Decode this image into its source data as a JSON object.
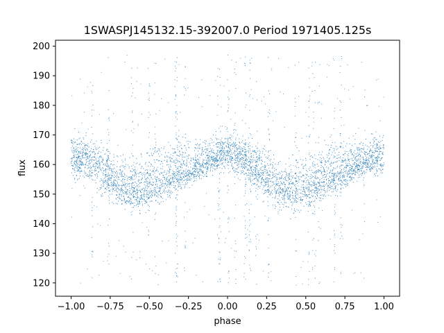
{
  "chart_data": {
    "type": "scatter",
    "title": "1SWASPJ145132.15-392007.0 Period 1971405.125s",
    "xlabel": "phase",
    "ylabel": "flux",
    "xlim": [
      -1.1,
      1.1
    ],
    "ylim": [
      115.5,
      202
    ],
    "xticks": [
      -1.0,
      -0.75,
      -0.5,
      -0.25,
      0.0,
      0.25,
      0.5,
      0.75,
      1.0
    ],
    "xtick_labels": [
      "−1.00",
      "−0.75",
      "−0.50",
      "−0.25",
      "0.00",
      "0.25",
      "0.50",
      "0.75",
      "1.00"
    ],
    "yticks": [
      120,
      130,
      140,
      150,
      160,
      170,
      180,
      190,
      200
    ],
    "ytick_labels": [
      "120",
      "130",
      "140",
      "150",
      "160",
      "170",
      "180",
      "190",
      "200"
    ],
    "series": [
      {
        "color": "#1f77b4",
        "marker": "point",
        "phase_range": [
          -1.0,
          1.0
        ],
        "core_band": {
          "x": [
            -1.0,
            -0.9,
            -0.8,
            -0.7,
            -0.6,
            -0.5,
            -0.4,
            -0.3,
            -0.2,
            -0.1,
            0.0,
            0.1,
            0.2,
            0.3,
            0.4,
            0.5,
            0.6,
            0.7,
            0.8,
            0.9,
            1.0
          ],
          "center": [
            163,
            162,
            158,
            153,
            151,
            152,
            155,
            157,
            159,
            162,
            164,
            162,
            158,
            153,
            151,
            152,
            155,
            157,
            159,
            162,
            163
          ],
          "low": [
            153,
            150,
            146,
            143,
            141,
            142,
            145,
            148,
            152,
            155,
            156,
            153,
            147,
            143,
            141,
            142,
            145,
            148,
            152,
            154,
            153
          ],
          "high": [
            174,
            172,
            170,
            167,
            167,
            169,
            172,
            174,
            172,
            172,
            174,
            172,
            170,
            167,
            167,
            169,
            172,
            174,
            172,
            172,
            174
          ]
        },
        "outlier_range": [
          119,
          197
        ]
      }
    ],
    "grid": false,
    "legend": "none"
  }
}
